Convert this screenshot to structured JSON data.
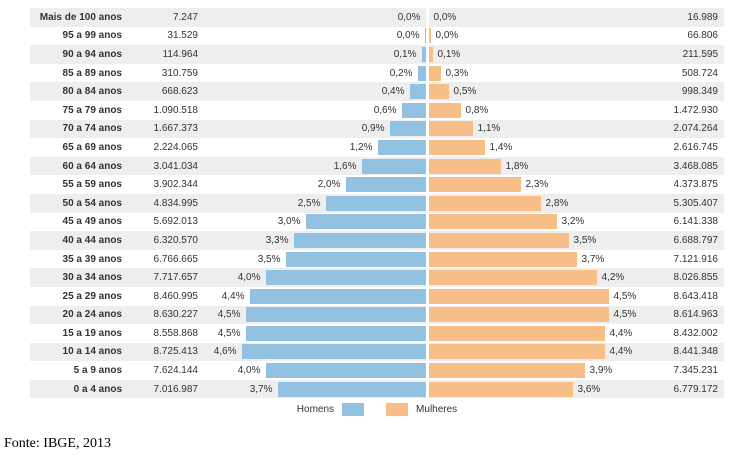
{
  "chart_data": {
    "type": "bar",
    "variant": "population-pyramid",
    "orientation": "horizontal",
    "grid": false,
    "legend_position": "bottom-center",
    "pct_axis_max": 4.6,
    "categories": [
      "Mais de 100 anos",
      "95 a 99 anos",
      "90 a 94 anos",
      "85 a 89 anos",
      "80 a 84 anos",
      "75 a 79 anos",
      "70 a 74 anos",
      "65 a 69 anos",
      "60 a 64 anos",
      "55 a 59 anos",
      "50 a 54 anos",
      "45 a 49 anos",
      "40 a 44 anos",
      "35 a 39 anos",
      "30 a 34 anos",
      "25 a 29 anos",
      "20 a 24 anos",
      "15 a 19 anos",
      "10 a 14 anos",
      "5 a 9 anos",
      "0 a 4 anos"
    ],
    "series": [
      {
        "name": "Homens",
        "side": "left",
        "color": "#92c1e2",
        "counts": [
          "7.247",
          "31.529",
          "114.964",
          "310.759",
          "668.623",
          "1.090.518",
          "1.667.373",
          "2.224.065",
          "3.041.034",
          "3.902.344",
          "4.834.995",
          "5.692.013",
          "6.320.570",
          "6.766.665",
          "7.717.657",
          "8.460.995",
          "8.630.227",
          "8.558.868",
          "8.725.413",
          "7.624.144",
          "7.016.987"
        ],
        "pct_labels": [
          "0,0%",
          "0,0%",
          "0,1%",
          "0,2%",
          "0,4%",
          "0,6%",
          "0,9%",
          "1,2%",
          "1,6%",
          "2,0%",
          "2,5%",
          "3,0%",
          "3,3%",
          "3,5%",
          "4,0%",
          "4,4%",
          "4,5%",
          "4,5%",
          "4,6%",
          "4,0%",
          "3,7%"
        ],
        "pct_values": [
          0.0,
          0.03,
          0.1,
          0.2,
          0.4,
          0.6,
          0.9,
          1.2,
          1.6,
          2.0,
          2.5,
          3.0,
          3.3,
          3.5,
          4.0,
          4.4,
          4.5,
          4.5,
          4.6,
          4.0,
          3.7
        ]
      },
      {
        "name": "Mulheres",
        "side": "right",
        "color": "#f7be87",
        "counts": [
          "16.989",
          "66.806",
          "211.595",
          "508.724",
          "998.349",
          "1.472.930",
          "2.074.264",
          "2.616.745",
          "3.468.085",
          "4.373.875",
          "5.305.407",
          "6.141.338",
          "6.688.797",
          "7.121.916",
          "8.026.855",
          "8.643.418",
          "8.614.963",
          "8.432.002",
          "8.441.348",
          "7.345.231",
          "6.779.172"
        ],
        "pct_labels": [
          "0,0%",
          "0,0%",
          "0,1%",
          "0,3%",
          "0,5%",
          "0,8%",
          "1,1%",
          "1,4%",
          "1,8%",
          "2,3%",
          "2,8%",
          "3,2%",
          "3,5%",
          "3,7%",
          "4,2%",
          "4,5%",
          "4,5%",
          "4,4%",
          "4,4%",
          "3,9%",
          "3,6%"
        ],
        "pct_values": [
          0.0,
          0.04,
          0.1,
          0.3,
          0.5,
          0.8,
          1.1,
          1.4,
          1.8,
          2.3,
          2.8,
          3.2,
          3.5,
          3.7,
          4.2,
          4.5,
          4.5,
          4.4,
          4.4,
          3.9,
          3.6
        ]
      }
    ]
  },
  "legend": {
    "homens": "Homens",
    "mulheres": "Mulheres"
  },
  "footer": {
    "source": "Fonte: IBGE, 2013"
  },
  "colors": {
    "male_bar": "#92c1e2",
    "female_bar": "#f7be87",
    "row_stripe": "#eeeeee",
    "text": "#333333"
  }
}
